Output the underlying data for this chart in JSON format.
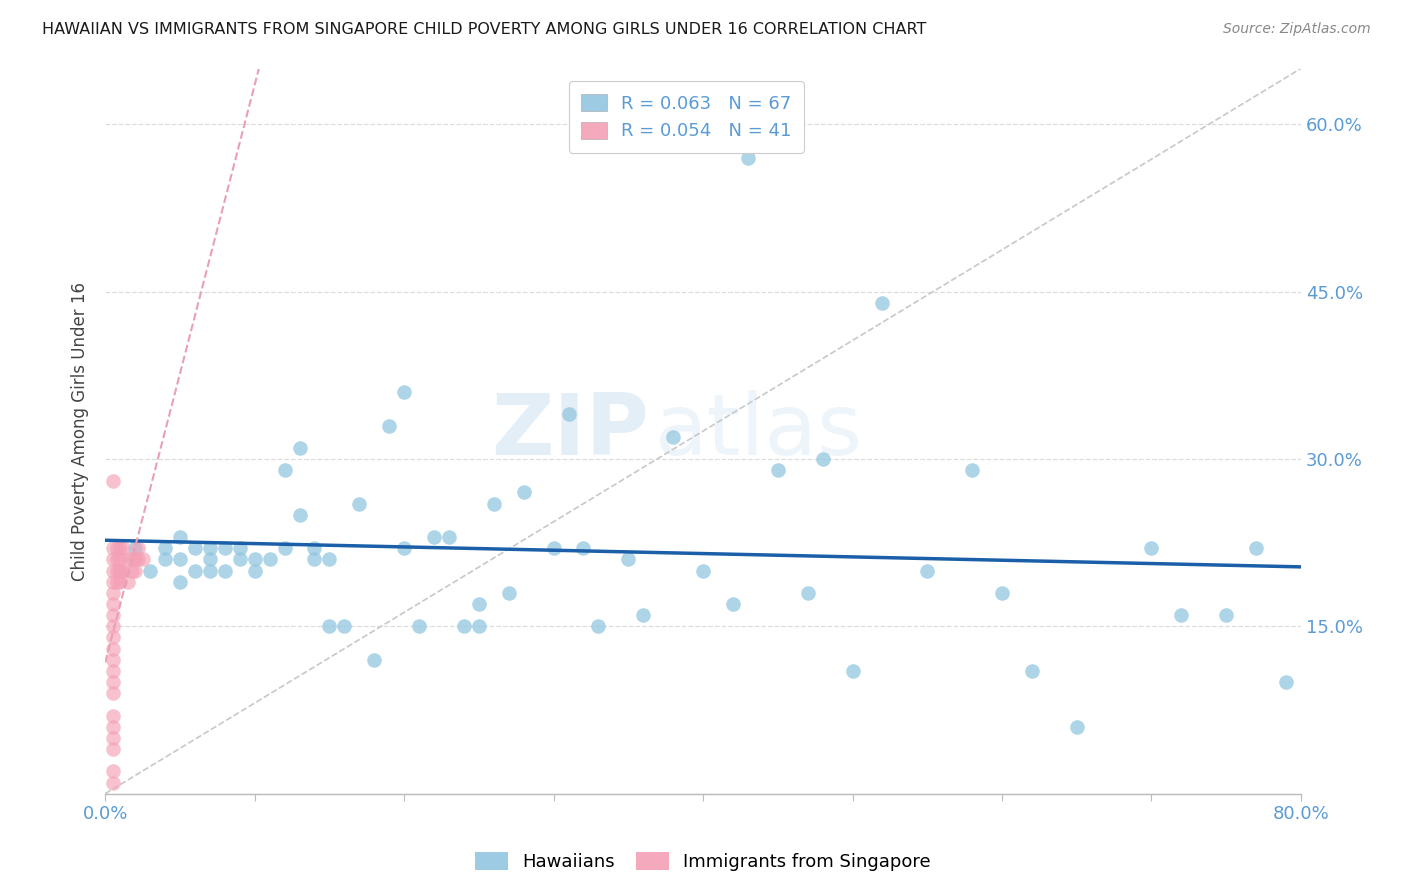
{
  "title": "HAWAIIAN VS IMMIGRANTS FROM SINGAPORE CHILD POVERTY AMONG GIRLS UNDER 16 CORRELATION CHART",
  "source": "Source: ZipAtlas.com",
  "ylabel": "Child Poverty Among Girls Under 16",
  "x_min": 0.0,
  "x_max": 0.8,
  "y_min": 0.0,
  "y_max": 0.65,
  "x_ticks": [
    0.0,
    0.1,
    0.2,
    0.3,
    0.4,
    0.5,
    0.6,
    0.7,
    0.8
  ],
  "y_ticks": [
    0.0,
    0.15,
    0.3,
    0.45,
    0.6
  ],
  "y_tick_labels_right": [
    "",
    "15.0%",
    "30.0%",
    "45.0%",
    "60.0%"
  ],
  "hawaiians_R": 0.063,
  "hawaiians_N": 67,
  "singapore_R": 0.054,
  "singapore_N": 41,
  "hawaiian_color": "#93c6e0",
  "singapore_color": "#f4a0b5",
  "trendline_hawaiian_color": "#1a5fa8",
  "trendline_singapore_color": "#e8a0b4",
  "diagonal_color": "#c8c8c8",
  "hawaiians_x": [
    0.02,
    0.03,
    0.04,
    0.04,
    0.05,
    0.05,
    0.05,
    0.06,
    0.06,
    0.07,
    0.07,
    0.07,
    0.08,
    0.08,
    0.09,
    0.09,
    0.1,
    0.1,
    0.11,
    0.12,
    0.12,
    0.13,
    0.13,
    0.14,
    0.14,
    0.15,
    0.15,
    0.16,
    0.17,
    0.18,
    0.19,
    0.2,
    0.2,
    0.21,
    0.22,
    0.23,
    0.24,
    0.25,
    0.25,
    0.26,
    0.27,
    0.28,
    0.3,
    0.31,
    0.32,
    0.33,
    0.35,
    0.36,
    0.38,
    0.4,
    0.42,
    0.43,
    0.45,
    0.47,
    0.48,
    0.5,
    0.52,
    0.55,
    0.58,
    0.6,
    0.62,
    0.65,
    0.7,
    0.72,
    0.75,
    0.77,
    0.79
  ],
  "hawaiians_y": [
    0.22,
    0.2,
    0.21,
    0.22,
    0.19,
    0.21,
    0.23,
    0.2,
    0.22,
    0.2,
    0.21,
    0.22,
    0.2,
    0.22,
    0.21,
    0.22,
    0.2,
    0.21,
    0.21,
    0.22,
    0.29,
    0.25,
    0.31,
    0.21,
    0.22,
    0.15,
    0.21,
    0.15,
    0.26,
    0.12,
    0.33,
    0.22,
    0.36,
    0.15,
    0.23,
    0.23,
    0.15,
    0.15,
    0.17,
    0.26,
    0.18,
    0.27,
    0.22,
    0.34,
    0.22,
    0.15,
    0.21,
    0.16,
    0.32,
    0.2,
    0.17,
    0.57,
    0.29,
    0.18,
    0.3,
    0.11,
    0.44,
    0.2,
    0.29,
    0.18,
    0.11,
    0.06,
    0.22,
    0.16,
    0.16,
    0.22,
    0.1
  ],
  "singapore_x": [
    0.005,
    0.005,
    0.005,
    0.005,
    0.005,
    0.005,
    0.005,
    0.005,
    0.005,
    0.005,
    0.005,
    0.005,
    0.005,
    0.005,
    0.005,
    0.005,
    0.005,
    0.005,
    0.005,
    0.005,
    0.005,
    0.008,
    0.008,
    0.008,
    0.008,
    0.01,
    0.01,
    0.01,
    0.01,
    0.01,
    0.012,
    0.012,
    0.015,
    0.015,
    0.018,
    0.018,
    0.02,
    0.02,
    0.022,
    0.022,
    0.025
  ],
  "singapore_y": [
    0.28,
    0.22,
    0.21,
    0.2,
    0.19,
    0.18,
    0.17,
    0.16,
    0.15,
    0.14,
    0.13,
    0.12,
    0.11,
    0.1,
    0.09,
    0.07,
    0.06,
    0.05,
    0.04,
    0.02,
    0.01,
    0.22,
    0.21,
    0.2,
    0.19,
    0.22,
    0.21,
    0.2,
    0.2,
    0.19,
    0.22,
    0.2,
    0.21,
    0.19,
    0.21,
    0.2,
    0.21,
    0.2,
    0.22,
    0.21,
    0.21
  ],
  "watermark_zip": "ZIP",
  "watermark_atlas": "atlas",
  "legend_entries": [
    "Hawaiians",
    "Immigrants from Singapore"
  ]
}
